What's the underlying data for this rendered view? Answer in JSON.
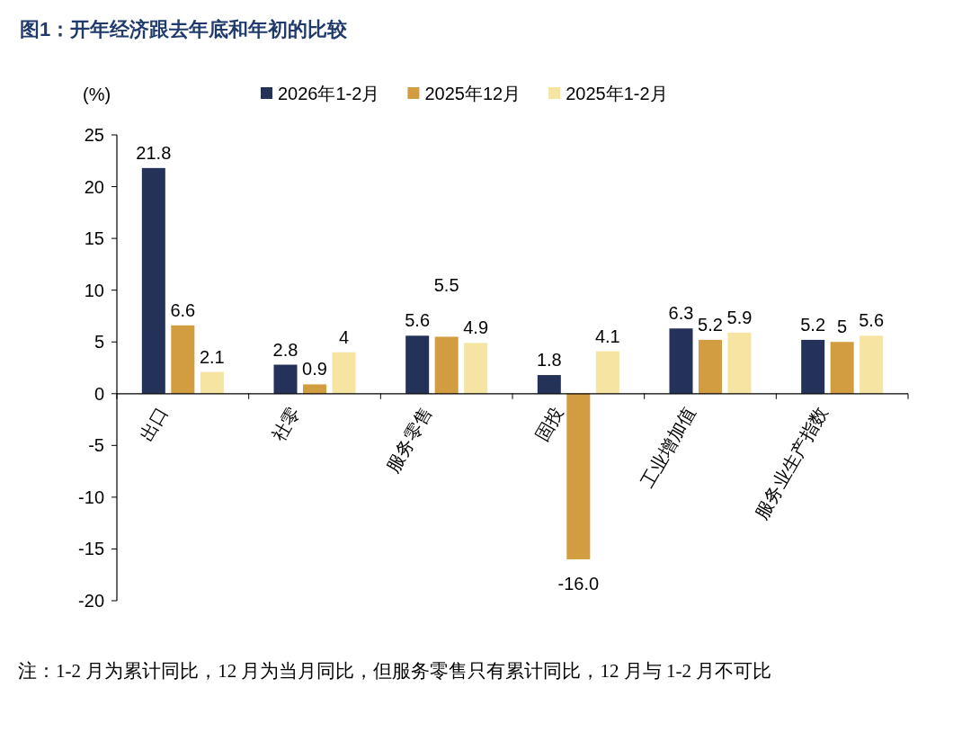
{
  "chart_data": {
    "type": "bar",
    "title": "图1：开年经济跟去年底和年初的比较",
    "ylabel": "(%)",
    "categories": [
      "出口",
      "社零",
      "服务零售",
      "固投",
      "工业增加值",
      "服务业生产指数"
    ],
    "series": [
      {
        "name": "2026年1-2月",
        "color": "#243159",
        "values": [
          21.8,
          2.8,
          5.6,
          1.8,
          6.3,
          5.2
        ],
        "value_labels": [
          "21.8",
          "2.8",
          "5.6",
          "1.8",
          "6.3",
          "5.2"
        ]
      },
      {
        "name": "2025年12月",
        "color": "#d29c40",
        "values": [
          6.6,
          0.9,
          5.5,
          -16.0,
          5.2,
          5
        ],
        "value_labels": [
          "6.6",
          "0.9",
          "5.5",
          "-16.0",
          "5.2",
          "5"
        ]
      },
      {
        "name": "2025年1-2月",
        "color": "#f6e4a2",
        "values": [
          2.1,
          4,
          4.9,
          4.1,
          5.9,
          5.6
        ],
        "value_labels": [
          "2.1",
          "4",
          "4.9",
          "4.1",
          "5.9",
          "5.6"
        ]
      }
    ],
    "ylim": [
      -20,
      25
    ],
    "yticks": [
      -20,
      -15,
      -10,
      -5,
      0,
      5,
      10,
      15,
      20,
      25
    ],
    "grid": false,
    "legend": "top",
    "annotations": [
      "注：1-2 月为累计同比，12 月为当月同比，但服务零售只有累计同比，12 月与 1-2 月不可比"
    ]
  }
}
